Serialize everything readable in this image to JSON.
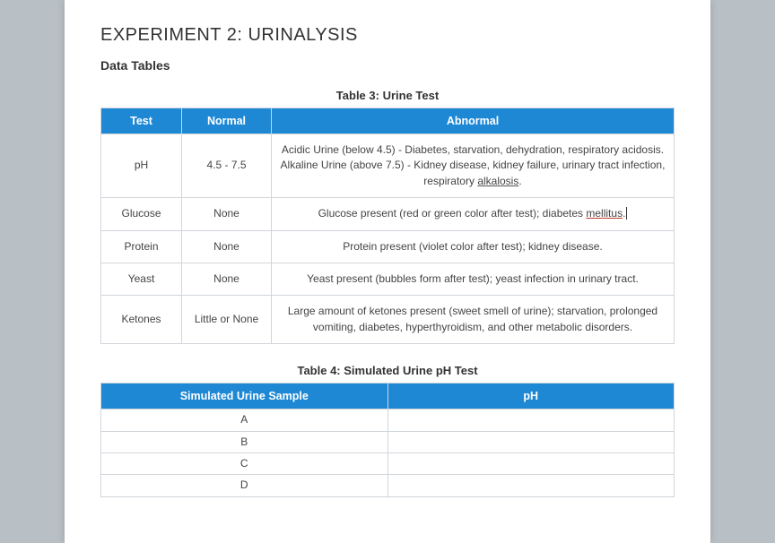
{
  "title": "EXPERIMENT 2: URINALYSIS",
  "subheading": "Data Tables",
  "table3": {
    "caption": "Table 3: Urine Test",
    "headers": {
      "test": "Test",
      "normal": "Normal",
      "abnormal": "Abnormal"
    },
    "rows": [
      {
        "test": "pH",
        "normal": "4.5 - 7.5",
        "ab_line1": "Acidic Urine (below 4.5) - Diabetes, starvation, dehydration, respiratory acidosis.",
        "ab_line2a": "Alkaline Urine (above 7.5) - Kidney disease, kidney failure, urinary tract infection, respiratory ",
        "ab_line2b": "alkalosis",
        "ab_line2c": "."
      },
      {
        "test": "Glucose",
        "normal": "None",
        "ab_a": "Glucose present (red or green color after test); diabetes ",
        "ab_b": "mellitus",
        "ab_c": "."
      },
      {
        "test": "Protein",
        "normal": "None",
        "ab": "Protein present (violet color after test); kidney disease."
      },
      {
        "test": "Yeast",
        "normal": "None",
        "ab": "Yeast present (bubbles form after test); yeast infection in urinary tract."
      },
      {
        "test": "Ketones",
        "normal": "Little or None",
        "ab": "Large amount of ketones present (sweet smell of urine); starvation, prolonged vomiting, diabetes, hyperthyroidism, and other metabolic disorders."
      }
    ]
  },
  "table4": {
    "caption": "Table 4: Simulated Urine pH Test",
    "headers": {
      "sample": "Simulated Urine Sample",
      "ph": "pH"
    },
    "rows": [
      {
        "sample": "A",
        "ph": ""
      },
      {
        "sample": "B",
        "ph": ""
      },
      {
        "sample": "C",
        "ph": ""
      },
      {
        "sample": "D",
        "ph": ""
      }
    ]
  },
  "colors": {
    "header_bg": "#1e88d4",
    "header_fg": "#ffffff",
    "border": "#d0d5da",
    "page_bg": "#ffffff",
    "body_bg": "#b8bfc5"
  }
}
